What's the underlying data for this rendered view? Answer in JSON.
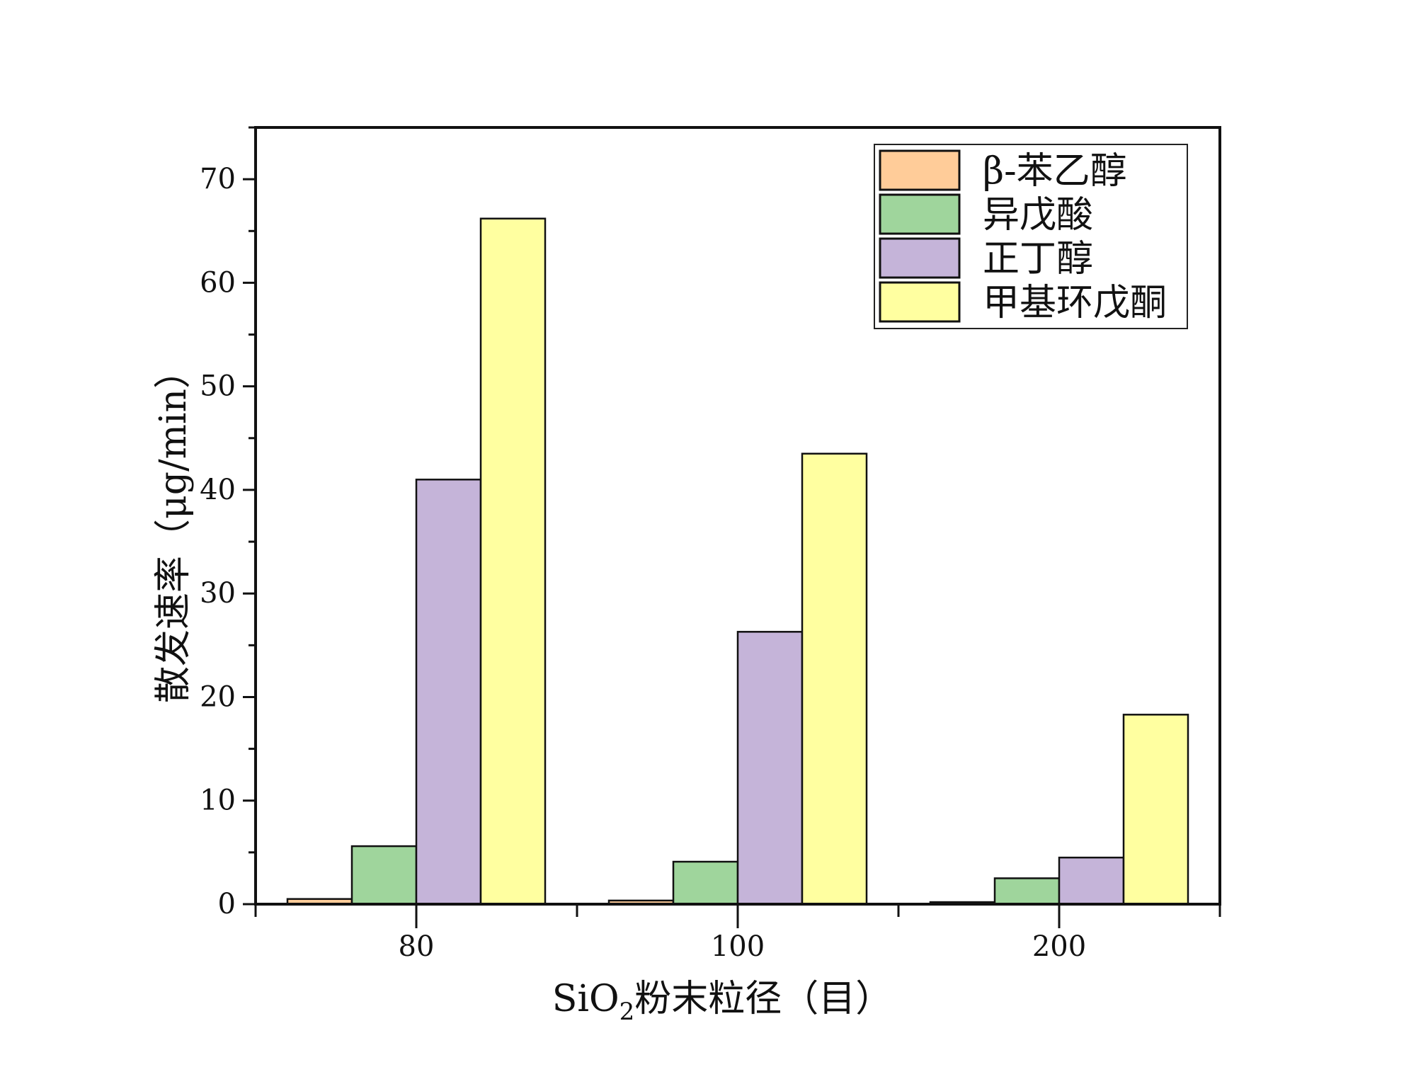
{
  "chart_data": {
    "type": "bar",
    "title": "",
    "xlabel": "SiO₂粉末粒径（目）",
    "xlabel_parts": {
      "main": "SiO",
      "subscript": "2",
      "rest": "粉末粒径（目）"
    },
    "ylabel": "散发速率（μg/min）",
    "categories": [
      "80",
      "100",
      "200"
    ],
    "ylim": [
      0,
      75
    ],
    "yticks": [
      0,
      10,
      20,
      30,
      40,
      50,
      60,
      70
    ],
    "grid": false,
    "legend_position": "top-right",
    "series": [
      {
        "name": "β-苯乙醇",
        "color": "#FFCC99",
        "values": [
          0.5,
          0.35,
          0.2
        ]
      },
      {
        "name": "异戊酸",
        "color": "#9FD59C",
        "values": [
          5.6,
          4.1,
          2.5
        ]
      },
      {
        "name": "正丁醇",
        "color": "#C5B4D9",
        "values": [
          41.0,
          26.3,
          4.5
        ]
      },
      {
        "name": "甲基环戊酮",
        "color": "#FFFFA0",
        "values": [
          66.2,
          43.5,
          18.3
        ]
      }
    ]
  }
}
